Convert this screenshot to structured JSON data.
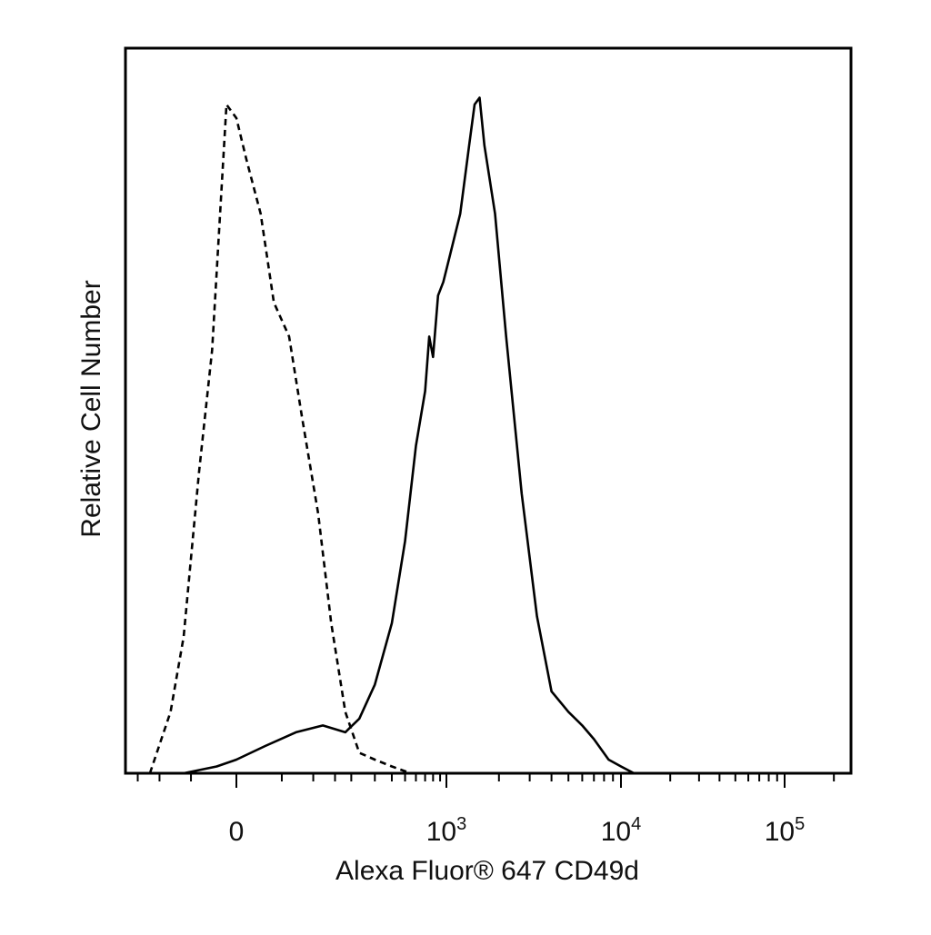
{
  "chart_data": {
    "type": "line",
    "xlabel": "Alexa Fluor® 647 CD49d",
    "ylabel": "Relative Cell Number",
    "x_scale": "biexponential",
    "xlim": [
      -200,
      200000
    ],
    "ylim": [
      0,
      1.0
    ],
    "grid": false,
    "legend": "none",
    "x_tick_labels": [
      {
        "value": 0,
        "base": "0",
        "exp": ""
      },
      {
        "value": 1000,
        "base": "10",
        "exp": "3"
      },
      {
        "value": 10000,
        "base": "10",
        "exp": "4"
      },
      {
        "value": 100000,
        "base": "10",
        "exp": "5"
      }
    ],
    "series": [
      {
        "style": "dashed",
        "x": [
          -120,
          -80,
          -60,
          -40,
          -25,
          -10,
          0,
          10,
          25,
          40,
          60,
          80,
          110,
          140,
          180,
          230,
          300,
          400,
          550,
          800,
          1200,
          2000
        ],
        "y": [
          0.0,
          0.09,
          0.2,
          0.44,
          0.62,
          0.98,
          0.96,
          0.9,
          0.82,
          0.69,
          0.64,
          0.52,
          0.38,
          0.22,
          0.09,
          0.03,
          0.02,
          0.01,
          0.0,
          0.0,
          0.0,
          0.0
        ]
      },
      {
        "style": "solid",
        "x": [
          -60,
          -20,
          0,
          30,
          70,
          120,
          180,
          230,
          300,
          400,
          500,
          600,
          700,
          750,
          800,
          870,
          950,
          1050,
          1200,
          1350,
          1450,
          1550,
          1650,
          1900,
          2200,
          2700,
          3300,
          4000,
          5000,
          6000,
          7000,
          8500,
          10000,
          12000,
          15000
        ],
        "y": [
          0.0,
          0.01,
          0.02,
          0.04,
          0.06,
          0.07,
          0.06,
          0.08,
          0.13,
          0.22,
          0.34,
          0.48,
          0.56,
          0.64,
          0.61,
          0.7,
          0.72,
          0.76,
          0.82,
          0.92,
          0.98,
          0.99,
          0.92,
          0.82,
          0.64,
          0.41,
          0.23,
          0.12,
          0.09,
          0.07,
          0.05,
          0.02,
          0.01,
          0.0,
          0.0
        ]
      }
    ]
  }
}
